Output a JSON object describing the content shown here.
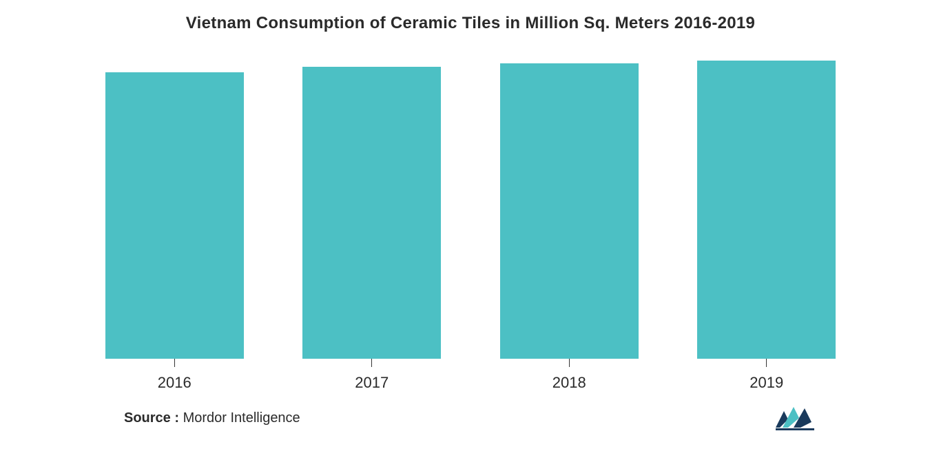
{
  "chart": {
    "type": "bar",
    "title": "Vietnam Consumption of Ceramic Tiles in Million Sq. Meters 2016-2019",
    "title_fontsize": 24,
    "title_color": "#2a2a2a",
    "background_color": "#ffffff",
    "categories": [
      "2016",
      "2017",
      "2018",
      "2019"
    ],
    "values": [
      96,
      98,
      99,
      100
    ],
    "value_max": 100,
    "bar_color": "#4cc0c4",
    "bar_width_pct": 70,
    "xlabel_fontsize": 22,
    "xlabel_color": "#2a2a2a",
    "tick_color": "#333333",
    "source_label": "Source :",
    "source_text": "Mordor Intelligence",
    "source_fontsize": 20,
    "logo_colors": {
      "dark": "#1a3a5c",
      "teal": "#4cc0c4"
    }
  }
}
